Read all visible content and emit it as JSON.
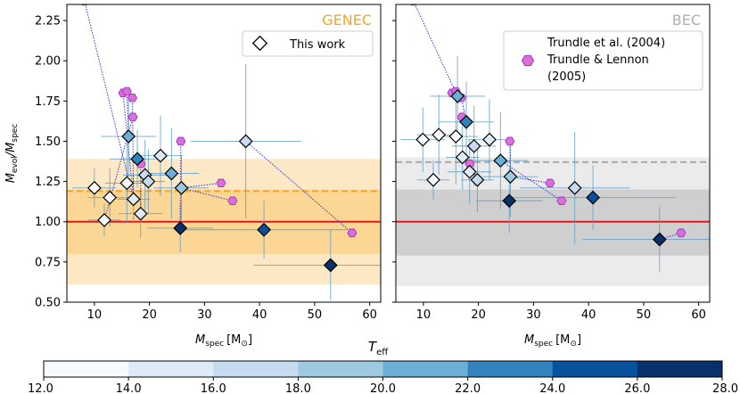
{
  "figure": {
    "ylabel_main": "M",
    "ylabel_sub": "evol",
    "ylabel_sep": "/M",
    "ylabel_sub2": "spec",
    "xlabel_main": "M",
    "xlabel_sub": "spec",
    "xlabel_unit": "[M",
    "xlabel_sun": "⊙",
    "xlabel_close": "]",
    "colorbar_label_main": "T",
    "colorbar_label_sub": "eff"
  },
  "colors": {
    "genec_title": "#f5a623",
    "bec_title": "#b0b0b0",
    "unity_line": "#e31a1c",
    "literature_line": "#3333cc",
    "literature_marker": "#da70d6",
    "literature_edge": "#9932cc",
    "errorbar": "#5a9bc9"
  },
  "chart_data": [
    {
      "type": "scatter",
      "title": "GENEC",
      "legend": [
        "This work"
      ],
      "legend_position": "top-right",
      "xlim": [
        5,
        62
      ],
      "ylim": [
        0.5,
        2.35
      ],
      "xticks": [
        10,
        20,
        30,
        40,
        50,
        60
      ],
      "yticks": [
        0.5,
        0.75,
        1.0,
        1.25,
        1.5,
        1.75,
        2.0,
        2.25
      ],
      "ytick_labels": [
        "0.50",
        "0.75",
        "1.00",
        "1.25",
        "1.50",
        "1.75",
        "2.00",
        "2.25"
      ],
      "reference_line": 1.0,
      "mean_line": 1.19,
      "band_inner": [
        0.8,
        1.2
      ],
      "band_outer": [
        0.61,
        1.39
      ],
      "points": [
        {
          "x": 10.0,
          "y": 1.21,
          "teff": 12.5,
          "xerr": 4,
          "yerr": 0.12
        },
        {
          "x": 11.8,
          "y": 1.01,
          "teff": 12.5,
          "xerr": 3,
          "yerr": 0.1
        },
        {
          "x": 12.8,
          "y": 1.15,
          "teff": 12.5,
          "xerr": 4,
          "yerr": 0.18
        },
        {
          "x": 15.9,
          "y": 1.24,
          "teff": 12.5,
          "xerr": 4,
          "yerr": 0.25
        },
        {
          "x": 16.2,
          "y": 1.53,
          "teff": 21.0,
          "xerr": 5,
          "yerr": 0.25
        },
        {
          "x": 17.1,
          "y": 1.14,
          "teff": 15.0,
          "xerr": 3,
          "yerr": 0.15
        },
        {
          "x": 17.8,
          "y": 1.39,
          "teff": 22.0,
          "xerr": 5,
          "yerr": 0.18
        },
        {
          "x": 18.4,
          "y": 1.05,
          "teff": 14.5,
          "xerr": 4,
          "yerr": 0.15
        },
        {
          "x": 19.2,
          "y": 1.29,
          "teff": 17.5,
          "xerr": 4,
          "yerr": 0.22
        },
        {
          "x": 19.8,
          "y": 1.25,
          "teff": 16.5,
          "xerr": 3,
          "yerr": 0.2
        },
        {
          "x": 22.0,
          "y": 1.41,
          "teff": 14.0,
          "xerr": 4,
          "yerr": 0.25
        },
        {
          "x": 24.0,
          "y": 1.3,
          "teff": 21.0,
          "xerr": 5,
          "yerr": 0.28
        },
        {
          "x": 25.8,
          "y": 1.21,
          "teff": 19.0,
          "xerr": 5,
          "yerr": 0.2
        },
        {
          "x": 25.6,
          "y": 0.96,
          "teff": 27.0,
          "xerr": 6,
          "yerr": 0.15
        },
        {
          "x": 37.5,
          "y": 1.5,
          "teff": 16.0,
          "xerr": 10,
          "yerr": 0.48
        },
        {
          "x": 40.8,
          "y": 0.95,
          "teff": 24.5,
          "xerr": 15,
          "yerr": 0.18
        },
        {
          "x": 52.9,
          "y": 0.73,
          "teff": 27.5,
          "xerr": 14,
          "yerr": 0.22
        }
      ],
      "literature": [
        {
          "x": 8.2,
          "y": 2.37,
          "to": 5
        },
        {
          "x": 15.2,
          "y": 1.8,
          "to": 5
        },
        {
          "x": 15.9,
          "y": 1.81,
          "to": 4
        },
        {
          "x": 16.9,
          "y": 1.77,
          "to": 5
        },
        {
          "x": 17.0,
          "y": 1.65,
          "to": 1
        },
        {
          "x": 18.4,
          "y": 1.36,
          "to": 7
        },
        {
          "x": 25.7,
          "y": 1.5,
          "to": 13
        },
        {
          "x": 33.0,
          "y": 1.24,
          "to": 12
        },
        {
          "x": 35.1,
          "y": 1.13,
          "to": 12
        },
        {
          "x": 56.8,
          "y": 0.93,
          "to": 14
        }
      ]
    },
    {
      "type": "scatter",
      "title": "BEC",
      "legend": [
        "Trundle et al. (2004)",
        "Trundle & Lennon",
        "(2005)"
      ],
      "legend_position": "top-right",
      "xlim": [
        5,
        62
      ],
      "ylim": [
        0.5,
        2.35
      ],
      "xticks": [
        10,
        20,
        30,
        40,
        50,
        60
      ],
      "yticks": [
        0.5,
        0.75,
        1.0,
        1.25,
        1.5,
        1.75,
        2.0,
        2.25
      ],
      "reference_line": 1.0,
      "mean_line": 1.37,
      "band_inner": [
        0.79,
        1.2
      ],
      "band_outer": [
        0.6,
        1.4
      ],
      "points": [
        {
          "x": 9.9,
          "y": 1.51,
          "teff": 12.5,
          "xerr": 4,
          "yerr": 0.2
        },
        {
          "x": 11.8,
          "y": 1.26,
          "teff": 12.5,
          "xerr": 3,
          "yerr": 0.12
        },
        {
          "x": 12.8,
          "y": 1.54,
          "teff": 12.5,
          "xerr": 4,
          "yerr": 0.25
        },
        {
          "x": 15.9,
          "y": 1.53,
          "teff": 12.5,
          "xerr": 4,
          "yerr": 0.3
        },
        {
          "x": 16.2,
          "y": 1.78,
          "teff": 21.0,
          "xerr": 5,
          "yerr": 0.25
        },
        {
          "x": 17.1,
          "y": 1.4,
          "teff": 15.0,
          "xerr": 3,
          "yerr": 0.2
        },
        {
          "x": 17.8,
          "y": 1.62,
          "teff": 22.0,
          "xerr": 5,
          "yerr": 0.25
        },
        {
          "x": 18.4,
          "y": 1.31,
          "teff": 14.5,
          "xerr": 4,
          "yerr": 0.2
        },
        {
          "x": 19.2,
          "y": 1.47,
          "teff": 17.5,
          "xerr": 4,
          "yerr": 0.25
        },
        {
          "x": 19.8,
          "y": 1.26,
          "teff": 16.5,
          "xerr": 3,
          "yerr": 0.2
        },
        {
          "x": 22.0,
          "y": 1.51,
          "teff": 14.0,
          "xerr": 4,
          "yerr": 0.25
        },
        {
          "x": 24.0,
          "y": 1.38,
          "teff": 21.0,
          "xerr": 5,
          "yerr": 0.3
        },
        {
          "x": 25.8,
          "y": 1.28,
          "teff": 19.0,
          "xerr": 5,
          "yerr": 0.25
        },
        {
          "x": 25.6,
          "y": 1.13,
          "teff": 27.0,
          "xerr": 6,
          "yerr": 0.2
        },
        {
          "x": 37.5,
          "y": 1.21,
          "teff": 16.0,
          "xerr": 10,
          "yerr": 0.35
        },
        {
          "x": 40.8,
          "y": 1.15,
          "teff": 24.5,
          "xerr": 15,
          "yerr": 0.2
        },
        {
          "x": 52.9,
          "y": 0.89,
          "teff": 27.5,
          "xerr": 14,
          "yerr": 0.2
        }
      ],
      "literature": [
        {
          "x": 8.2,
          "y": 2.37,
          "to": 4
        },
        {
          "x": 15.2,
          "y": 1.8,
          "to": 4
        },
        {
          "x": 15.9,
          "y": 1.81,
          "to": 4
        },
        {
          "x": 16.9,
          "y": 1.77,
          "to": 6
        },
        {
          "x": 17.0,
          "y": 1.65,
          "to": 6
        },
        {
          "x": 18.4,
          "y": 1.36,
          "to": 9
        },
        {
          "x": 25.7,
          "y": 1.5,
          "to": 12
        },
        {
          "x": 33.0,
          "y": 1.24,
          "to": 12
        },
        {
          "x": 35.1,
          "y": 1.13,
          "to": 11
        },
        {
          "x": 56.8,
          "y": 0.93,
          "to": 16
        }
      ]
    }
  ],
  "colorbar": {
    "vmin": 12.0,
    "vmax": 28.0,
    "ticks": [
      "12.0",
      "14.0",
      "16.0",
      "18.0",
      "20.0",
      "22.0",
      "24.0",
      "26.0",
      "28.0"
    ],
    "bin_colors": [
      "#f7fbff",
      "#deebf7",
      "#c6dbef",
      "#9ecae1",
      "#6baed6",
      "#3182bd",
      "#08519c",
      "#08306b"
    ]
  }
}
